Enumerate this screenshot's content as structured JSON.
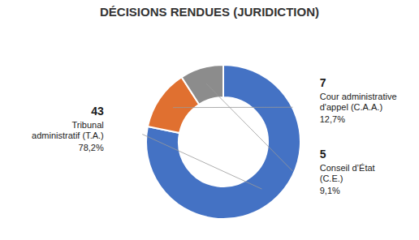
{
  "chart_data": {
    "type": "pie",
    "title": "DÉCISIONS RENDUES (JURIDICTION)",
    "categories": [
      "Tribunal\nadministratif (T.A.)",
      "Cour administrative\nd'appel (C.A.A.)",
      "Conseil d’État\n(C.E.)"
    ],
    "values": [
      78.2,
      12.7,
      9.1
    ],
    "value_labels": [
      "78,2%",
      "12,7%",
      "9,1%"
    ],
    "counts": [
      43,
      7,
      5
    ],
    "colors": [
      "#4472c4",
      "#e07030",
      "#8c8c8c"
    ],
    "data_labels": true
  }
}
